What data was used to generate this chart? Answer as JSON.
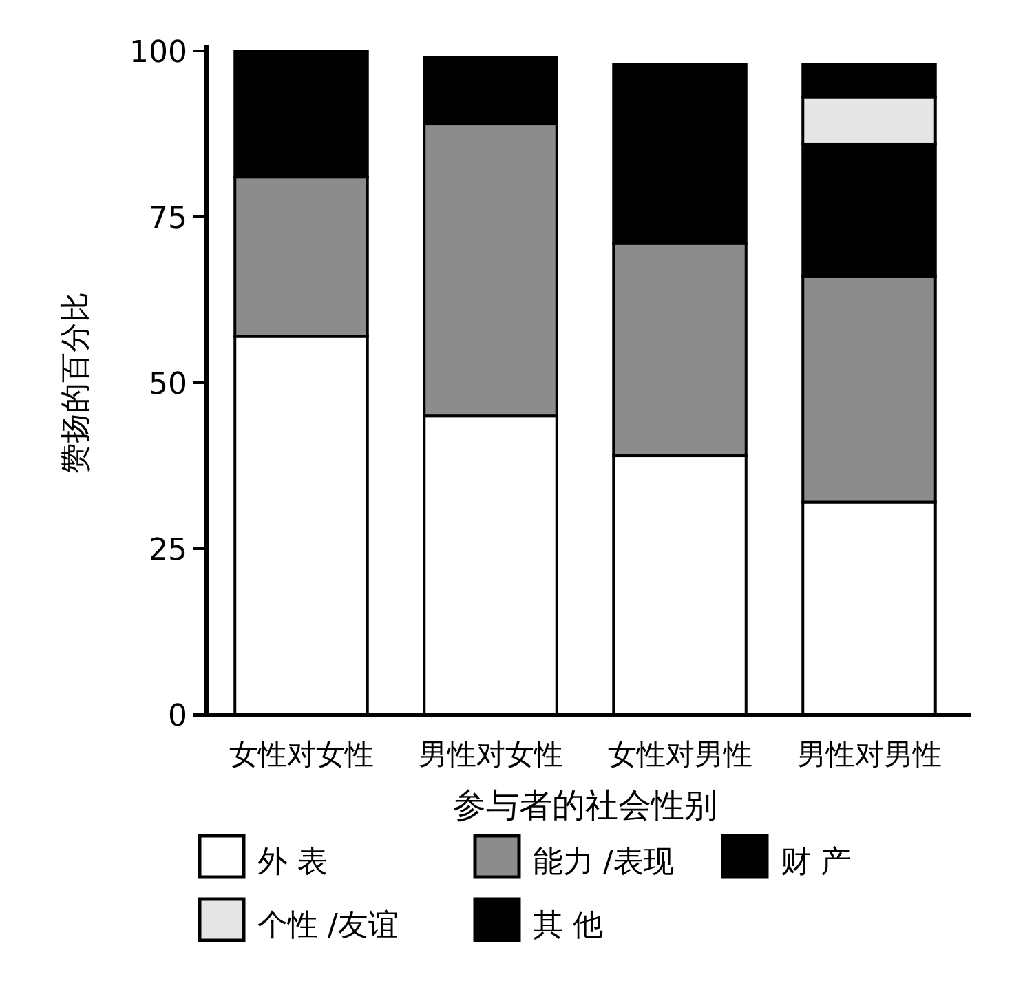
{
  "chart_data": {
    "type": "bar",
    "stacked": true,
    "xlabel": "参与者的社会性别",
    "ylabel": "赞扬的百分比",
    "categories": [
      "女性对女性",
      "男性对女性",
      "女性对男性",
      "男性对男性"
    ],
    "series": [
      {
        "name": "外 表",
        "color": "#ffffff",
        "values": [
          57,
          45,
          39,
          32
        ]
      },
      {
        "name": "能力 /表现",
        "color": "#8c8c8c",
        "values": [
          24,
          44,
          32,
          34
        ]
      },
      {
        "name": "财 产",
        "color": "#000000",
        "values": [
          19,
          10,
          27,
          20
        ]
      },
      {
        "name": "个性 /友谊",
        "color": "#e6e6e6",
        "values": [
          0,
          0,
          0,
          7
        ]
      },
      {
        "name": "其 他",
        "color": "#000000",
        "values": [
          0,
          0,
          0,
          5
        ]
      }
    ],
    "ylim": [
      0,
      100
    ],
    "yticks": [
      0,
      25,
      50,
      75,
      100
    ],
    "grid": false,
    "legend": "bottom"
  }
}
